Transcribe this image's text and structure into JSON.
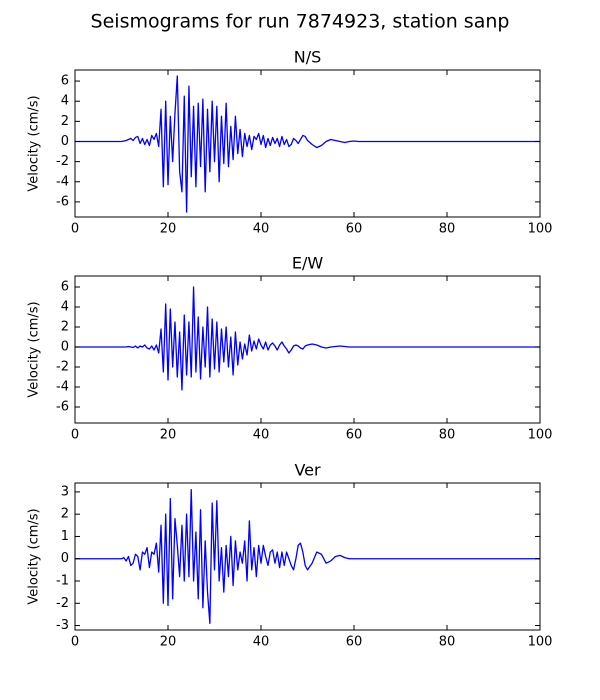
{
  "title": "Seismograms for run 7874923, station sanp",
  "chart_data": [
    {
      "type": "line",
      "title": "N/S",
      "ylabel": "Velocity (cm/s)",
      "xlim": [
        0,
        100
      ],
      "xticks": [
        0,
        20,
        40,
        60,
        80,
        100
      ],
      "ylim": [
        -7.5,
        7.1
      ],
      "yticks": [
        -6,
        -4,
        -2,
        0,
        2,
        4,
        6
      ],
      "x": [
        0,
        5,
        10,
        10.5,
        11,
        11.5,
        12,
        12.5,
        13,
        13.5,
        14,
        14.5,
        15,
        15.5,
        16,
        16.5,
        17,
        17.5,
        18,
        18.5,
        19,
        19.5,
        20,
        20.5,
        21,
        21.5,
        22,
        22.5,
        23,
        23.5,
        24,
        24.5,
        25,
        25.5,
        26,
        26.5,
        27,
        27.5,
        28,
        28.5,
        29,
        29.5,
        30,
        30.5,
        31,
        31.5,
        32,
        32.5,
        33,
        33.5,
        34,
        34.5,
        35,
        35.5,
        36,
        36.5,
        37,
        37.5,
        38,
        38.5,
        39,
        39.5,
        40,
        40.5,
        41,
        41.5,
        42,
        42.5,
        43,
        43.5,
        44,
        44.5,
        45,
        45.5,
        46,
        46.5,
        47,
        47.5,
        48,
        48.5,
        49,
        49.5,
        50,
        51,
        52,
        53,
        54,
        55,
        56,
        57,
        58,
        59,
        60,
        61,
        62,
        63,
        64,
        66,
        70,
        75,
        80,
        90,
        100
      ],
      "series": [
        {
          "name": "N/S",
          "color": "#0000ff",
          "values": [
            0,
            0,
            0,
            0.05,
            0.1,
            0.2,
            0.3,
            0.1,
            0.4,
            0.5,
            -0.2,
            0.3,
            -0.3,
            0.2,
            -0.4,
            0.6,
            0.2,
            0.8,
            -0.5,
            3.2,
            -4.5,
            4.0,
            -4.3,
            2.5,
            -2.0,
            2.8,
            6.5,
            -3.0,
            -5.0,
            4.5,
            -7.0,
            5.5,
            -3.5,
            3.5,
            -4.5,
            3.8,
            -2.5,
            4.2,
            -5.0,
            3.2,
            -3.0,
            4.0,
            -2.0,
            3.5,
            -4.0,
            2.5,
            -2.2,
            3.8,
            -2.5,
            1.5,
            -1.8,
            2.5,
            -1.2,
            1.2,
            -1.5,
            0.8,
            -0.5,
            0.6,
            -0.8,
            0.5,
            0.2,
            0.8,
            -0.3,
            0.6,
            -0.6,
            0.3,
            -0.4,
            0.4,
            -0.2,
            0.3,
            -0.5,
            0.5,
            -0.3,
            0.2,
            -0.5,
            -0.3,
            0.3,
            0.1,
            -0.2,
            0.2,
            0.6,
            0.5,
            0.1,
            -0.3,
            -0.6,
            -0.4,
            0,
            0.2,
            0.1,
            0,
            -0.1,
            0,
            0.05,
            0,
            0,
            0,
            0,
            0,
            0,
            0,
            0,
            0,
            0
          ]
        }
      ]
    },
    {
      "type": "line",
      "title": "E/W",
      "ylabel": "Velocity (cm/s)",
      "xlim": [
        0,
        100
      ],
      "xticks": [
        0,
        20,
        40,
        60,
        80,
        100
      ],
      "ylim": [
        -7.6,
        7.1
      ],
      "yticks": [
        -6,
        -4,
        -2,
        0,
        2,
        4,
        6
      ],
      "x": [
        0,
        5,
        10,
        10.5,
        11,
        11.5,
        12,
        12.5,
        13,
        13.5,
        14,
        14.5,
        15,
        15.5,
        16,
        16.5,
        17,
        17.5,
        18,
        18.5,
        19,
        19.5,
        20,
        20.5,
        21,
        21.5,
        22,
        22.5,
        23,
        23.5,
        24,
        24.5,
        25,
        25.5,
        26,
        26.5,
        27,
        27.5,
        28,
        28.5,
        29,
        29.5,
        30,
        30.5,
        31,
        31.5,
        32,
        32.5,
        33,
        33.5,
        34,
        34.5,
        35,
        35.5,
        36,
        36.5,
        37,
        37.5,
        38,
        38.5,
        39,
        39.5,
        40,
        40.5,
        41,
        41.5,
        42,
        42.5,
        43,
        43.5,
        44,
        44.5,
        45,
        45.5,
        46,
        46.5,
        47,
        47.5,
        48,
        48.5,
        49,
        49.5,
        50,
        51,
        52,
        53,
        54,
        55,
        56,
        57,
        58,
        59,
        60,
        61,
        62,
        63,
        64,
        66,
        70,
        75,
        80,
        90,
        100
      ],
      "series": [
        {
          "name": "E/W",
          "color": "#0000ff",
          "values": [
            0,
            0,
            0,
            0,
            0,
            0.05,
            0,
            -0.05,
            0.1,
            -0.1,
            0.1,
            0,
            0.2,
            -0.1,
            -0.2,
            0.1,
            -0.3,
            0.2,
            -0.6,
            1.8,
            -2.5,
            4.3,
            -3.3,
            3.8,
            -2.0,
            2.5,
            -3.0,
            1.5,
            -4.3,
            3.2,
            -2.8,
            2.5,
            -3.0,
            6.0,
            -2.5,
            3.0,
            -3.2,
            2.0,
            -2.0,
            4.0,
            -3.0,
            2.8,
            -2.2,
            2.5,
            -2.5,
            1.8,
            -1.5,
            2.0,
            -2.0,
            1.0,
            -2.8,
            1.5,
            -1.8,
            0.5,
            -1.2,
            0.3,
            -0.8,
            1.2,
            -0.4,
            0.6,
            -0.2,
            0.8,
            0.2,
            -0.2,
            0.5,
            -0.3,
            0.2,
            0.4,
            0.1,
            -0.3,
            0.2,
            0.5,
            0.1,
            -0.2,
            -0.6,
            -0.3,
            0.1,
            0.2,
            0.1,
            -0.1,
            -0.2,
            0.1,
            0.2,
            0.3,
            0.2,
            0,
            -0.1,
            0,
            0.05,
            0.1,
            0.05,
            0,
            0,
            0,
            0,
            0,
            0,
            0,
            0,
            0,
            0,
            0,
            0
          ]
        }
      ]
    },
    {
      "type": "line",
      "title": "Ver",
      "ylabel": "Velocity (cm/s)",
      "xlim": [
        0,
        100
      ],
      "xticks": [
        0,
        20,
        40,
        60,
        80,
        100
      ],
      "ylim": [
        -3.2,
        3.4
      ],
      "yticks": [
        -3,
        -2,
        -1,
        0,
        1,
        2,
        3
      ],
      "x": [
        0,
        5,
        10,
        10.5,
        11,
        11.5,
        12,
        12.5,
        13,
        13.5,
        14,
        14.5,
        15,
        15.5,
        16,
        16.5,
        17,
        17.5,
        18,
        18.5,
        19,
        19.5,
        20,
        20.5,
        21,
        21.5,
        22,
        22.5,
        23,
        23.5,
        24,
        24.5,
        25,
        25.5,
        26,
        26.5,
        27,
        27.5,
        28,
        28.5,
        29,
        29.5,
        30,
        30.5,
        31,
        31.5,
        32,
        32.5,
        33,
        33.5,
        34,
        34.5,
        35,
        35.5,
        36,
        36.5,
        37,
        37.5,
        38,
        38.5,
        39,
        39.5,
        40,
        40.5,
        41,
        41.5,
        42,
        42.5,
        43,
        43.5,
        44,
        44.5,
        45,
        45.5,
        46,
        46.5,
        47,
        47.5,
        48,
        48.5,
        49,
        49.5,
        50,
        51,
        52,
        53,
        54,
        55,
        56,
        57,
        58,
        59,
        60,
        61,
        62,
        63,
        64,
        66,
        70,
        75,
        80,
        90,
        100
      ],
      "series": [
        {
          "name": "Ver",
          "color": "#0000ff",
          "values": [
            0,
            0,
            0,
            0.05,
            -0.1,
            0.1,
            -0.3,
            -0.2,
            0.2,
            0.1,
            -0.5,
            0.3,
            0.2,
            0.5,
            -0.4,
            0.3,
            0.2,
            0.7,
            -0.6,
            1.5,
            -2.0,
            2.0,
            -2.1,
            2.7,
            -1.8,
            1.8,
            0.6,
            -0.8,
            1.5,
            -1.0,
            2.0,
            -0.8,
            3.1,
            -1.0,
            1.2,
            -1.8,
            2.2,
            -2.2,
            0.8,
            -1.5,
            -2.9,
            2.5,
            -0.5,
            2.6,
            -1.0,
            0.5,
            -1.5,
            0.6,
            -0.8,
            1.0,
            -1.2,
            0.8,
            -0.5,
            0.3,
            -0.2,
            0.8,
            -1.0,
            1.7,
            -0.5,
            0.5,
            -0.8,
            0.6,
            -0.2,
            0.6,
            0.1,
            -0.3,
            0.3,
            0.4,
            -0.2,
            0.3,
            -0.4,
            0.3,
            -0.3,
            0.3,
            0.0,
            -0.3,
            -0.5,
            0,
            0.6,
            0.7,
            0.3,
            -0.3,
            -0.5,
            -0.2,
            0.3,
            0.2,
            -0.2,
            -0.1,
            0.1,
            0.15,
            0.05,
            0,
            0,
            0,
            0,
            0,
            0,
            0,
            0,
            0,
            0,
            0,
            0
          ]
        }
      ]
    }
  ]
}
